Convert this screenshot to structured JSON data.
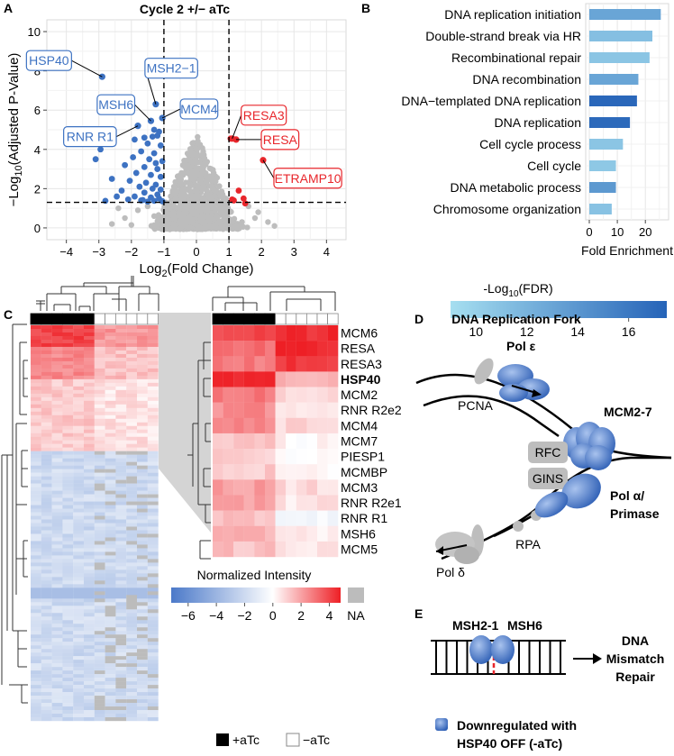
{
  "panels": {
    "a": {
      "letter": "A",
      "title": "Cycle 2 +/− aTc",
      "xlabel_main": "Log",
      "xlabel_sub": "2",
      "xlabel_rest": "(Fold Change)",
      "ylabel_main": "−Log",
      "ylabel_sub": "10",
      "ylabel_rest": "(Adjusted P-Value)"
    },
    "b": {
      "letter": "B",
      "xlabel": "Fold Enrichment",
      "legend_title_main": "-Log",
      "legend_title_sub": "10",
      "legend_title_rest": "(FDR)",
      "legend_ticks": [
        "10",
        "12",
        "14",
        "16"
      ],
      "colors": {
        "low": "#a6dff0",
        "high": "#2563b8"
      }
    },
    "c": {
      "letter": "C",
      "legend_title": "Normalized Intensity",
      "legend_ticks": [
        "−6",
        "−4",
        "−2",
        "0",
        "2",
        "4"
      ],
      "na_label": "NA",
      "plus_label": "+aTc",
      "minus_label": "−aTc",
      "genes": [
        "MCM6",
        "RESA",
        "RESA3",
        "HSP40",
        "MCM2",
        "RNR R2e2",
        "MCM4",
        "MCM7",
        "PIESP1",
        "MCMBP",
        "MCM3",
        "RNR R2e1",
        "RNR R1",
        "MSH6",
        "MCM5"
      ],
      "colors": {
        "neg": "#4b79c9",
        "zero": "#ffffff",
        "pos": "#ee1f25",
        "na": "#bcbcbc"
      }
    },
    "d": {
      "letter": "D",
      "title": "DNA Replication Fork",
      "labels": {
        "pol_e": "Pol ε",
        "pcna": "PCNA",
        "mcm": "MCM2-7",
        "rfc": "RFC",
        "gins": "GINS",
        "pol_a1": "Pol α/",
        "pol_a2": "Primase",
        "rpa": "RPA",
        "pol_d": "Pol δ"
      }
    },
    "e": {
      "letter": "E",
      "msh2": "MSH2-1",
      "msh6": "MSH6",
      "outcome": [
        "DNA",
        "Mismatch",
        "Repair"
      ]
    },
    "legend": {
      "line1": "Downregulated with",
      "line2": "HSP40 OFF (-aTc)"
    }
  },
  "chart_data": [
    {
      "type": "scatter",
      "title": "Cycle 2 +/− aTc",
      "xlabel": "Log2(Fold Change)",
      "ylabel": "−Log10(Adjusted P-Value)",
      "xlim": [
        -4.6,
        4.6
      ],
      "ylim": [
        -0.6,
        10.6
      ],
      "xticks": [
        -4,
        -3,
        -2,
        -1,
        0,
        1,
        2,
        3,
        4
      ],
      "yticks": [
        0,
        2,
        4,
        6,
        8,
        10
      ],
      "thresholds": {
        "x": [
          -1,
          1
        ],
        "y": 1.3
      },
      "colors": {
        "down": "#3d72c2",
        "up": "#e8262b",
        "ns": "#bdbdbd"
      },
      "labeled_points": [
        {
          "gene": "HSP40",
          "x": -2.9,
          "y": 7.7,
          "group": "down"
        },
        {
          "gene": "MSH2−1",
          "x": -1.25,
          "y": 6.3,
          "group": "down"
        },
        {
          "gene": "MSH6",
          "x": -1.4,
          "y": 5.45,
          "group": "down"
        },
        {
          "gene": "MCM4",
          "x": -1.05,
          "y": 5.6,
          "group": "down"
        },
        {
          "gene": "RNR R1",
          "x": -1.8,
          "y": 5.2,
          "group": "down"
        },
        {
          "gene": "RESA3",
          "x": 1.1,
          "y": 4.55,
          "group": "up"
        },
        {
          "gene": "RESA",
          "x": 1.22,
          "y": 4.5,
          "group": "up"
        },
        {
          "gene": "ETRAMP10",
          "x": 2.05,
          "y": 3.45,
          "group": "up"
        }
      ],
      "down_points": [
        [
          -1.3,
          5.0
        ],
        [
          -1.15,
          4.9
        ],
        [
          -1.6,
          4.6
        ],
        [
          -1.2,
          4.7
        ],
        [
          -1.5,
          4.3
        ],
        [
          -1.1,
          4.2
        ],
        [
          -1.7,
          3.9
        ],
        [
          -1.3,
          3.8
        ],
        [
          -1.95,
          3.6
        ],
        [
          -1.45,
          3.5
        ],
        [
          -1.05,
          3.4
        ],
        [
          -2.2,
          3.2
        ],
        [
          -1.6,
          3.1
        ],
        [
          -1.2,
          3.0
        ],
        [
          -1.85,
          2.8
        ],
        [
          -1.4,
          2.7
        ],
        [
          -1.1,
          2.6
        ],
        [
          -2.6,
          2.5
        ],
        [
          -2.05,
          2.4
        ],
        [
          -1.55,
          2.3
        ],
        [
          -1.25,
          2.2
        ],
        [
          -1.75,
          2.1
        ],
        [
          -1.35,
          2.0
        ],
        [
          -1.1,
          1.95
        ],
        [
          -2.3,
          1.9
        ],
        [
          -1.6,
          1.8
        ],
        [
          -1.2,
          1.7
        ],
        [
          -1.9,
          1.6
        ],
        [
          -1.4,
          1.55
        ],
        [
          -1.15,
          1.5
        ],
        [
          -2.1,
          1.45
        ],
        [
          -1.7,
          1.4
        ],
        [
          -1.3,
          1.38
        ],
        [
          -2.8,
          1.38
        ],
        [
          -1.05,
          1.36
        ],
        [
          -1.5,
          1.34
        ],
        [
          -3.1,
          3.5
        ],
        [
          -2.95,
          4.0
        ],
        [
          -1.35,
          4.65
        ],
        [
          -1.9,
          4.5
        ],
        [
          -1.65,
          1.42
        ],
        [
          -2.45,
          1.6
        ],
        [
          -1.25,
          3.3
        ]
      ],
      "up_points": [
        [
          1.05,
          4.55
        ],
        [
          1.3,
          1.9
        ],
        [
          1.1,
          1.45
        ],
        [
          1.45,
          1.5
        ],
        [
          1.5,
          1.25
        ],
        [
          1.15,
          1.4
        ]
      ],
      "ns_summary": "~1200 non-significant proteins concentrated around x = 0, y = 0–4.7"
    },
    {
      "type": "bar",
      "orientation": "horizontal",
      "xlabel": "Fold Enrichment",
      "xlim": [
        0,
        27
      ],
      "xticks": [
        0,
        10,
        20
      ],
      "color_metric": "-Log10(FDR)",
      "color_range": [
        9,
        17.5
      ],
      "categories": [
        "DNA replication initiation",
        "Double-strand break via HR",
        "Recombinational repair",
        "DNA recombination",
        "DNA−templated DNA replication",
        "DNA replication",
        "Cell cycle process",
        "Cell cycle",
        "DNA metabolic process",
        "Chromosome organization"
      ],
      "values": [
        25.5,
        22.5,
        21.5,
        17.5,
        17.0,
        14.5,
        12.0,
        9.5,
        9.5,
        8.0
      ],
      "fdr": [
        13.0,
        11.2,
        10.8,
        13.0,
        17.2,
        17.0,
        10.8,
        10.6,
        13.8,
        11.0
      ]
    }
  ]
}
